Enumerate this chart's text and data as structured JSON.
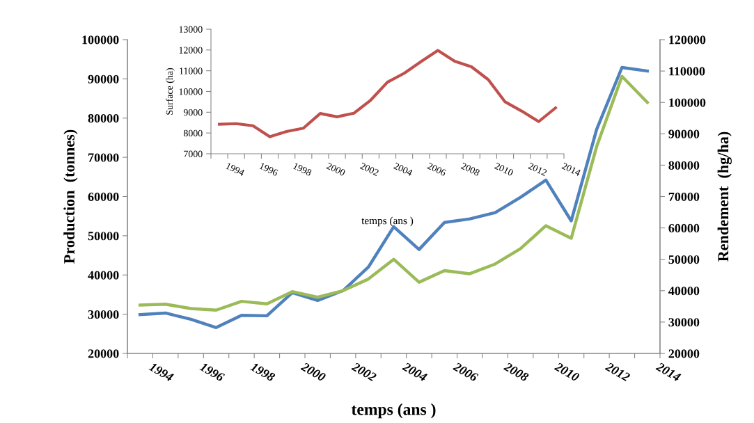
{
  "chart_data": [
    {
      "type": "line",
      "xlabel": "temps (ans )",
      "ylabel": "Production  (tonnes)",
      "y2label": "Rendement  (hg/ha)",
      "x": [
        1993.5,
        1994.5,
        1995.5,
        1996.5,
        1997.5,
        1998.5,
        1999.5,
        2000.5,
        2001.5,
        2002.5,
        2003.5,
        2004.5,
        2005.5,
        2006.5,
        2007.5,
        2008.5,
        2009.5,
        2010.5,
        2011.5,
        2012.5,
        2013.5
      ],
      "xlim": [
        1993,
        2014
      ],
      "xticks": [
        {
          "value": 1993,
          "label": null
        },
        1994,
        {
          "value": 1995,
          "label": null
        },
        1996,
        {
          "value": 1997,
          "label": null
        },
        1998,
        {
          "value": 1999,
          "label": null
        },
        2000,
        {
          "value": 2001,
          "label": null
        },
        2002,
        {
          "value": 2003,
          "label": null
        },
        2004,
        {
          "value": 2005,
          "label": null
        },
        2006,
        {
          "value": 2007,
          "label": null
        },
        2008,
        {
          "value": 2009,
          "label": null
        },
        2010,
        {
          "value": 2011,
          "label": null
        },
        2012,
        {
          "value": 2013,
          "label": null
        },
        2014
      ],
      "ylim": [
        20000,
        100000
      ],
      "yticks": [
        20000,
        30000,
        40000,
        50000,
        60000,
        70000,
        80000,
        90000,
        100000
      ],
      "y2lim": [
        20000,
        120000
      ],
      "y2ticks": [
        20000,
        30000,
        40000,
        50000,
        60000,
        70000,
        80000,
        90000,
        100000,
        110000,
        120000
      ],
      "grid": false,
      "legend": false,
      "series": [
        {
          "color": "#4f81bd",
          "values": [
            29900,
            30300,
            28700,
            26600,
            29700,
            29600,
            35500,
            33500,
            36000,
            42000,
            52300,
            46500,
            53400,
            54300,
            55900,
            59800,
            64200,
            53800,
            77100,
            92900,
            92000
          ]
        },
        {
          "color": "#9bbb59",
          "axis": "y2",
          "values": [
            35400,
            35700,
            34300,
            33800,
            36600,
            35800,
            39700,
            37900,
            40000,
            43700,
            50000,
            42700,
            46400,
            45400,
            48500,
            53400,
            60700,
            56700,
            85900,
            108300,
            100000
          ]
        }
      ]
    },
    {
      "type": "line",
      "xlabel": "temps (ans )",
      "ylabel": "Surface (ha)",
      "x": [
        1993.5,
        1994.5,
        1995.5,
        1996.5,
        1997.5,
        1998.5,
        1999.5,
        2000.5,
        2001.5,
        2002.5,
        2003.5,
        2004.5,
        2005.5,
        2006.5,
        2007.5,
        2008.5,
        2009.5,
        2010.5,
        2011.5,
        2012.5,
        2013.5
      ],
      "xlim": [
        1993,
        2014
      ],
      "xticks": [
        {
          "value": 1993,
          "label": null
        },
        1994,
        {
          "value": 1995,
          "label": null
        },
        1996,
        {
          "value": 1997,
          "label": null
        },
        1998,
        {
          "value": 1999,
          "label": null
        },
        2000,
        {
          "value": 2001,
          "label": null
        },
        2002,
        {
          "value": 2003,
          "label": null
        },
        2004,
        {
          "value": 2005,
          "label": null
        },
        2006,
        {
          "value": 2007,
          "label": null
        },
        2008,
        {
          "value": 2009,
          "label": null
        },
        2010,
        {
          "value": 2011,
          "label": null
        },
        2012,
        {
          "value": 2013,
          "label": null
        },
        2014
      ],
      "ylim": [
        7000,
        13000
      ],
      "yticks": [
        7000,
        8000,
        9000,
        10000,
        11000,
        12000,
        13000
      ],
      "grid": false,
      "legend": false,
      "series": [
        {
          "color": "#c0504d",
          "values": [
            8420,
            8450,
            8350,
            7820,
            8070,
            8230,
            8940,
            8780,
            8950,
            9580,
            10450,
            10880,
            11440,
            11980,
            11460,
            11190,
            10570,
            9500,
            9050,
            8550,
            9210
          ]
        }
      ]
    }
  ]
}
